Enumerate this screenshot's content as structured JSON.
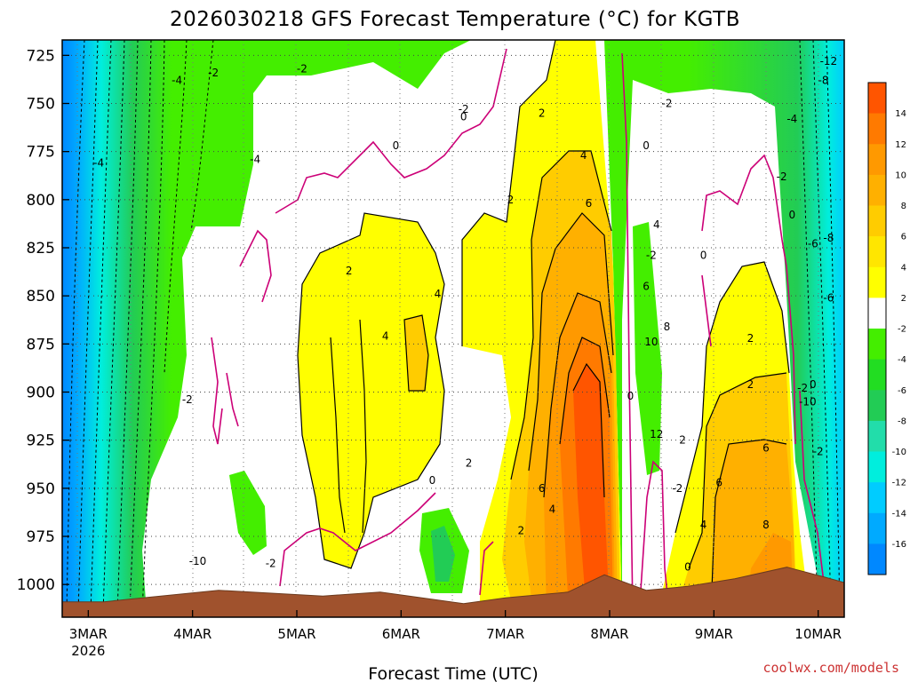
{
  "title": "2026030218 GFS Forecast Temperature (°C) for KGTB",
  "credit": "coolwx.com/models",
  "colors": {
    "terrain": "#a0522d",
    "zero_line": "#cc0077",
    "credit": "#cc3333"
  },
  "chart_data": {
    "type": "heatmap",
    "xlabel": "Forecast Time (UTC)",
    "ylabel": "",
    "x_ticks": [
      "3MAR",
      "4MAR",
      "5MAR",
      "6MAR",
      "7MAR",
      "8MAR",
      "9MAR",
      "10MAR"
    ],
    "x_sub": "2026",
    "xlim": [
      "2026-03-02T18:00",
      "2026-03-10T06:00"
    ],
    "y_ticks": [
      725,
      750,
      775,
      800,
      825,
      850,
      875,
      900,
      925,
      950,
      975,
      1000
    ],
    "ylim": [
      1017,
      717
    ],
    "y_inverted": true,
    "grid": true,
    "colorbar": {
      "levels": [
        -16,
        -14,
        -12,
        -10,
        -8,
        -6,
        -4,
        -2,
        2,
        4,
        6,
        8,
        10,
        12,
        14
      ],
      "labels": [
        "14",
        "12",
        "10",
        "8",
        "6",
        "4",
        "2",
        "-2",
        "-4",
        "-6",
        "-8",
        "-10",
        "-12",
        "-14",
        "-16"
      ],
      "colors": [
        "#ff5500",
        "#ff7a00",
        "#ff9900",
        "#ffb000",
        "#ffcc00",
        "#ffe600",
        "#ffff00",
        "#ffffff",
        "#44ee00",
        "#22dd22",
        "#22cc55",
        "#22ddaa",
        "#00eedd",
        "#00ccff",
        "#00aaff",
        "#0088ff"
      ]
    },
    "series": [
      {
        "values": [
          {
            "day": 3.15,
            "p": 1009
          },
          {
            "day": 4.25,
            "p": 1003
          },
          {
            "day": 5.25,
            "p": 1006
          },
          {
            "day": 5.8,
            "p": 1004
          },
          {
            "day": 6.2,
            "p": 1007
          },
          {
            "day": 6.6,
            "p": 1010
          },
          {
            "day": 7.0,
            "p": 1007
          },
          {
            "day": 7.6,
            "p": 1004
          },
          {
            "day": 7.95,
            "p": 995
          },
          {
            "day": 8.35,
            "p": 1003
          },
          {
            "day": 8.75,
            "p": 1001
          },
          {
            "day": 9.2,
            "p": 997
          },
          {
            "day": 9.7,
            "p": 991
          },
          {
            "day": 10.05,
            "p": 996
          },
          {
            "day": 10.25,
            "p": 999
          }
        ]
      }
    ],
    "contour_labels": [
      {
        "text": "-2",
        "day": 4.2,
        "p": 734
      },
      {
        "text": "-2",
        "day": 5.05,
        "p": 732
      },
      {
        "text": "-2",
        "day": 6.6,
        "p": 753
      },
      {
        "text": "-2",
        "day": 8.55,
        "p": 750
      },
      {
        "text": "-2",
        "day": 9.65,
        "p": 788
      },
      {
        "text": "-2",
        "day": 9.85,
        "p": 898
      },
      {
        "text": "-2",
        "day": 10.0,
        "p": 931
      },
      {
        "text": "-2",
        "day": 8.65,
        "p": 950
      },
      {
        "text": "-2",
        "day": 8.4,
        "p": 829
      },
      {
        "text": "-2",
        "day": 3.95,
        "p": 904
      },
      {
        "text": "-2",
        "day": 4.75,
        "p": 989
      },
      {
        "text": "-4",
        "day": 3.85,
        "p": 738
      },
      {
        "text": "-4",
        "day": 4.6,
        "p": 779
      },
      {
        "text": "-4",
        "day": 3.1,
        "p": 781
      },
      {
        "text": "-4",
        "day": 9.75,
        "p": 758
      },
      {
        "text": "-6",
        "day": 9.95,
        "p": 823
      },
      {
        "text": "-6",
        "day": 10.1,
        "p": 851
      },
      {
        "text": "-8",
        "day": 10.05,
        "p": 738
      },
      {
        "text": "-8",
        "day": 10.1,
        "p": 820
      },
      {
        "text": "-10",
        "day": 9.9,
        "p": 905
      },
      {
        "text": "-10",
        "day": 4.05,
        "p": 988
      },
      {
        "text": "-12",
        "day": 10.1,
        "p": 728
      },
      {
        "text": "0",
        "day": 5.95,
        "p": 772
      },
      {
        "text": "0",
        "day": 6.6,
        "p": 757
      },
      {
        "text": "0",
        "day": 8.35,
        "p": 772
      },
      {
        "text": "0",
        "day": 9.75,
        "p": 808
      },
      {
        "text": "0",
        "day": 8.9,
        "p": 829
      },
      {
        "text": "0",
        "day": 6.3,
        "p": 946
      },
      {
        "text": "0",
        "day": 8.75,
        "p": 991
      },
      {
        "text": "0",
        "day": 9.95,
        "p": 896
      },
      {
        "text": "0",
        "day": 8.2,
        "p": 902
      },
      {
        "text": "2",
        "day": 7.35,
        "p": 755
      },
      {
        "text": "2",
        "day": 7.05,
        "p": 800
      },
      {
        "text": "2",
        "day": 5.5,
        "p": 837
      },
      {
        "text": "2",
        "day": 6.65,
        "p": 937
      },
      {
        "text": "2",
        "day": 7.15,
        "p": 972
      },
      {
        "text": "2",
        "day": 8.7,
        "p": 925
      },
      {
        "text": "2",
        "day": 9.35,
        "p": 872
      },
      {
        "text": "2",
        "day": 9.35,
        "p": 896
      },
      {
        "text": "4",
        "day": 5.85,
        "p": 871
      },
      {
        "text": "4",
        "day": 6.35,
        "p": 849
      },
      {
        "text": "4",
        "day": 7.75,
        "p": 777
      },
      {
        "text": "4",
        "day": 8.45,
        "p": 813
      },
      {
        "text": "4",
        "day": 7.45,
        "p": 961
      },
      {
        "text": "4",
        "day": 8.9,
        "p": 969
      },
      {
        "text": "6",
        "day": 7.8,
        "p": 802
      },
      {
        "text": "6",
        "day": 8.35,
        "p": 845
      },
      {
        "text": "6",
        "day": 7.35,
        "p": 950
      },
      {
        "text": "6",
        "day": 9.05,
        "p": 947
      },
      {
        "text": "6",
        "day": 9.5,
        "p": 929
      },
      {
        "text": "8",
        "day": 8.55,
        "p": 866
      },
      {
        "text": "8",
        "day": 9.5,
        "p": 969
      },
      {
        "text": "10",
        "day": 8.4,
        "p": 874
      },
      {
        "text": "12",
        "day": 8.45,
        "p": 922
      }
    ]
  }
}
